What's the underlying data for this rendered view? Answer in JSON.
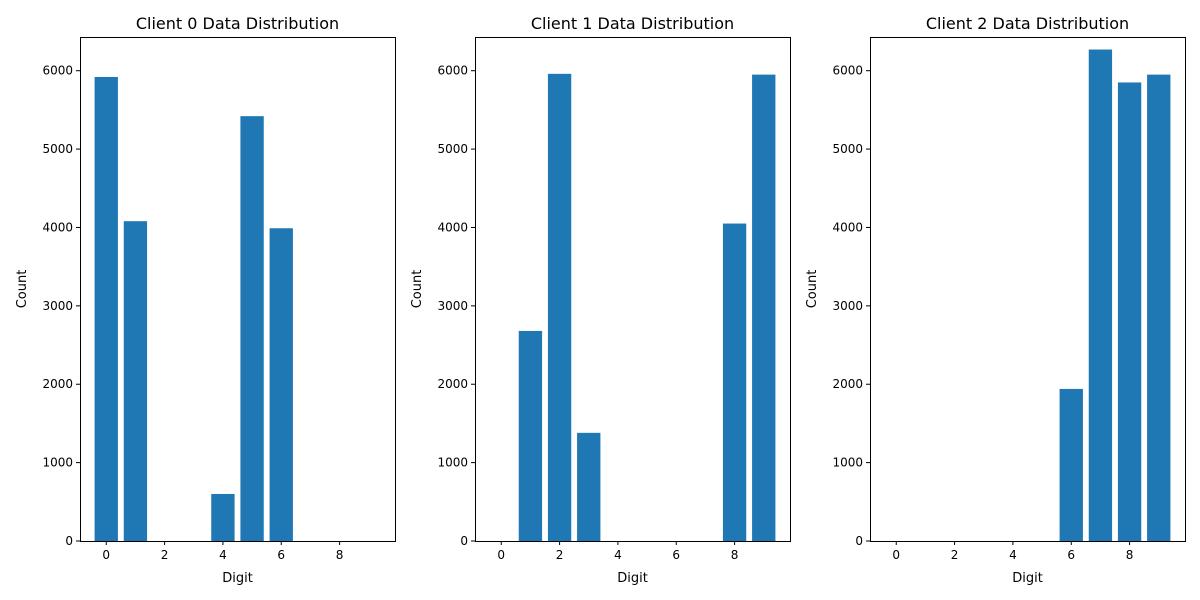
{
  "bar_color": "#1f77b4",
  "chart_data": [
    {
      "type": "bar",
      "title": "Client 0 Data Distribution",
      "xlabel": "Digit",
      "ylabel": "Count",
      "categories": [
        0,
        1,
        2,
        3,
        4,
        5,
        6,
        7,
        8,
        9
      ],
      "values": [
        5920,
        4080,
        0,
        0,
        600,
        5420,
        3990,
        0,
        0,
        0
      ],
      "xlim": [
        -0.9,
        9.9
      ],
      "ylim": [
        0,
        6430
      ],
      "xticks": [
        0,
        2,
        4,
        6,
        8
      ],
      "yticks": [
        0,
        1000,
        2000,
        3000,
        4000,
        5000,
        6000
      ]
    },
    {
      "type": "bar",
      "title": "Client 1 Data Distribution",
      "xlabel": "Digit",
      "ylabel": "Count",
      "categories": [
        0,
        1,
        2,
        3,
        4,
        5,
        6,
        7,
        8,
        9
      ],
      "values": [
        0,
        2680,
        5960,
        1380,
        0,
        0,
        0,
        0,
        4050,
        5950
      ],
      "xlim": [
        -0.9,
        9.9
      ],
      "ylim": [
        0,
        6430
      ],
      "xticks": [
        0,
        2,
        4,
        6,
        8
      ],
      "yticks": [
        0,
        1000,
        2000,
        3000,
        4000,
        5000,
        6000
      ]
    },
    {
      "type": "bar",
      "title": "Client 2 Data Distribution",
      "xlabel": "Digit",
      "ylabel": "Count",
      "categories": [
        0,
        1,
        2,
        3,
        4,
        5,
        6,
        7,
        8,
        9
      ],
      "values": [
        0,
        0,
        0,
        0,
        0,
        0,
        1940,
        6270,
        5850,
        5950
      ],
      "xlim": [
        -0.9,
        9.9
      ],
      "ylim": [
        0,
        6430
      ],
      "xticks": [
        0,
        2,
        4,
        6,
        8
      ],
      "yticks": [
        0,
        1000,
        2000,
        3000,
        4000,
        5000,
        6000
      ]
    }
  ]
}
